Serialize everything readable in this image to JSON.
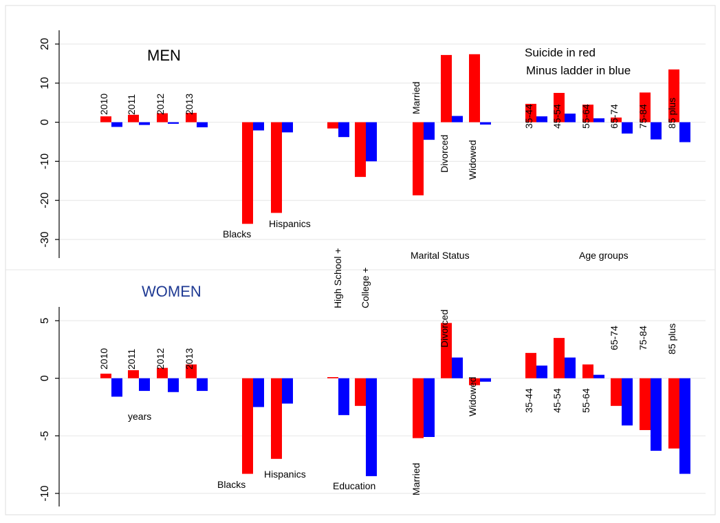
{
  "chart_data": [
    {
      "type": "bar",
      "title": "MEN",
      "legend": [
        "Suicide in red",
        "Minus ladder in blue"
      ],
      "series_colors": [
        "#ff0000",
        "#0000ff"
      ],
      "ylim": [
        -34,
        22
      ],
      "yticks": [
        20,
        10,
        0,
        -10,
        -20,
        -30
      ],
      "grid": true,
      "group_labels": [
        "Marital Status",
        "Age groups"
      ],
      "categories": [
        {
          "label": "2010",
          "suicide": 1.5,
          "ladder": -1.2
        },
        {
          "label": "2011",
          "suicide": 1.9,
          "ladder": -0.7
        },
        {
          "label": "2012",
          "suicide": 2.3,
          "ladder": -0.4
        },
        {
          "label": "2013",
          "suicide": 2.4,
          "ladder": -1.3
        },
        {
          "label": "Blacks",
          "suicide": -26,
          "ladder": -2.1
        },
        {
          "label": "Hispanics",
          "suicide": -23.2,
          "ladder": -2.6
        },
        {
          "label": "High School +",
          "suicide": -1.6,
          "ladder": -3.8
        },
        {
          "label": "College +",
          "suicide": -14,
          "ladder": -10
        },
        {
          "label": "Married",
          "suicide": -18.7,
          "ladder": -4.5
        },
        {
          "label": "Divorced",
          "suicide": 17.2,
          "ladder": 1.6
        },
        {
          "label": "Widowed",
          "suicide": 17.4,
          "ladder": -0.6
        },
        {
          "label": "35-44",
          "suicide": 4.7,
          "ladder": 1.5
        },
        {
          "label": "45-54",
          "suicide": 7.5,
          "ladder": 2.2
        },
        {
          "label": "55-64",
          "suicide": 4.5,
          "ladder": 1.0
        },
        {
          "label": "65-74",
          "suicide": 1.2,
          "ladder": -2.9
        },
        {
          "label": "75-84",
          "suicide": 7.6,
          "ladder": -4.4
        },
        {
          "label": "85 plus",
          "suicide": 13.5,
          "ladder": -5.1
        }
      ]
    },
    {
      "type": "bar",
      "title": "WOMEN",
      "series_colors": [
        "#ff0000",
        "#0000ff"
      ],
      "ylim": [
        -11.2,
        6.2
      ],
      "yticks": [
        5,
        0,
        -5,
        -10
      ],
      "grid": true,
      "group_labels": [
        "years",
        "Education"
      ],
      "categories": [
        {
          "label": "2010",
          "suicide": 0.4,
          "ladder": -1.6
        },
        {
          "label": "2011",
          "suicide": 0.7,
          "ladder": -1.1
        },
        {
          "label": "2012",
          "suicide": 0.9,
          "ladder": -1.2
        },
        {
          "label": "2013",
          "suicide": 1.2,
          "ladder": -1.1
        },
        {
          "label": "Blacks",
          "suicide": -8.3,
          "ladder": -2.5
        },
        {
          "label": "Hispanics",
          "suicide": -7.0,
          "ladder": -2.2
        },
        {
          "label": "",
          "suicide": 0.1,
          "ladder": -3.2
        },
        {
          "label": "",
          "suicide": -2.4,
          "ladder": -8.5
        },
        {
          "label": "Married",
          "suicide": -5.2,
          "ladder": -5.1
        },
        {
          "label": "Divorced",
          "suicide": 4.8,
          "ladder": 1.8
        },
        {
          "label": "Widowed",
          "suicide": -0.6,
          "ladder": -0.3
        },
        {
          "label": "35-44",
          "suicide": 2.2,
          "ladder": 1.1
        },
        {
          "label": "45-54",
          "suicide": 3.5,
          "ladder": 1.8
        },
        {
          "label": "55-64",
          "suicide": 1.2,
          "ladder": 0.3
        },
        {
          "label": "65-74",
          "suicide": -2.4,
          "ladder": -4.1
        },
        {
          "label": "75-84",
          "suicide": -4.5,
          "ladder": -6.3
        },
        {
          "label": "85 plus",
          "suicide": -6.1,
          "ladder": -8.3
        }
      ]
    }
  ]
}
